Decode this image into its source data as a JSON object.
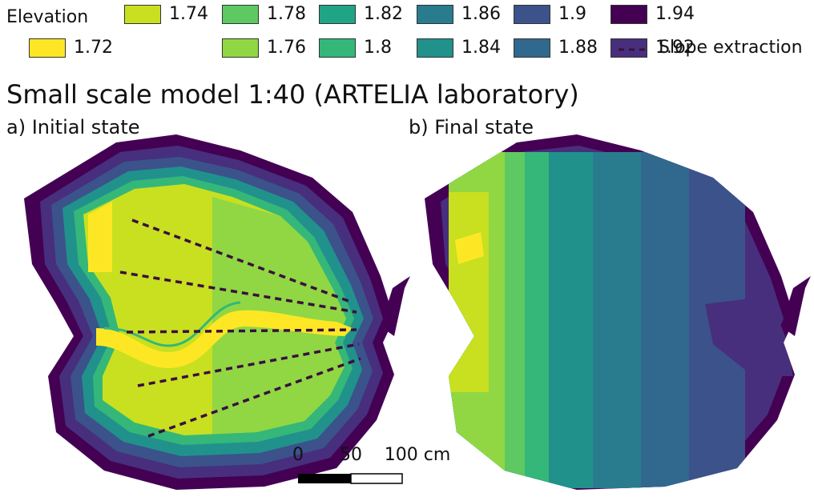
{
  "legend": {
    "title": "Elevation",
    "entries": [
      {
        "label": "1.72",
        "color": "#fde725"
      },
      {
        "label": "1.74",
        "color": "#c8e020"
      },
      {
        "label": "1.76",
        "color": "#90d743"
      },
      {
        "label": "1.78",
        "color": "#5ec962"
      },
      {
        "label": "1.8",
        "color": "#35b779"
      },
      {
        "label": "1.82",
        "color": "#20a486"
      },
      {
        "label": "1.84",
        "color": "#21918c"
      },
      {
        "label": "1.86",
        "color": "#287c8e"
      },
      {
        "label": "1.88",
        "color": "#31688e"
      },
      {
        "label": "1.9",
        "color": "#3b528b"
      },
      {
        "label": "1.92",
        "color": "#472f7d"
      },
      {
        "label": "1.94",
        "color": "#440154"
      }
    ],
    "line_label": "Slope extraction",
    "line_color": "#3b0f3f"
  },
  "title": "Small scale model 1:40 (ARTELIA laboratory)",
  "panels": {
    "a": "a) Initial state",
    "b": "b) Final state"
  },
  "scalebar": {
    "ticks": [
      "0",
      "50",
      "100 cm"
    ]
  }
}
